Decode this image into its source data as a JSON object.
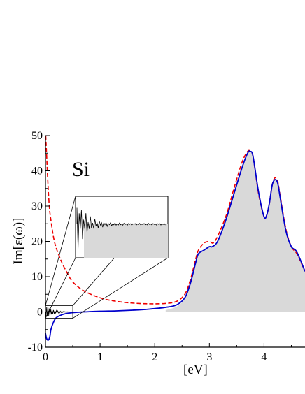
{
  "chart_data": {
    "type": "line",
    "title": "",
    "annotation": "Si",
    "xlabel": "[eV]",
    "ylabel": "Im[ε(ω)]",
    "xlim": [
      0,
      4.75
    ],
    "ylim": [
      -10,
      50
    ],
    "xticks": [
      0,
      1,
      2,
      3,
      4
    ],
    "yticks": [
      -10,
      0,
      10,
      20,
      30,
      40,
      50
    ],
    "legend": "none",
    "grid": false,
    "colors": {
      "blue_line": "#0000cc",
      "red_dashed": "#ee0000",
      "shaded_area": "#d9d9d9",
      "noisy_line": "#000000"
    },
    "series": [
      {
        "style": "solid-blue",
        "x": [
          0.0,
          0.02,
          0.05,
          0.08,
          0.1,
          0.15,
          0.2,
          0.3,
          0.4,
          0.5,
          0.7,
          1.0,
          1.3,
          1.6,
          1.9,
          2.2,
          2.4,
          2.55,
          2.65,
          2.75,
          2.8,
          2.9,
          3.0,
          3.05,
          3.15,
          3.3,
          3.45,
          3.6,
          3.7,
          3.75,
          3.8,
          3.9,
          4.0,
          4.05,
          4.1,
          4.15,
          4.2,
          4.25,
          4.3,
          4.4,
          4.5,
          4.6,
          4.75
        ],
        "y": [
          -6.0,
          -7.5,
          -8.0,
          -7.0,
          -5.0,
          -2.8,
          -1.6,
          -0.8,
          -0.4,
          -0.2,
          0.0,
          0.2,
          0.3,
          0.5,
          0.8,
          1.3,
          2.0,
          4.0,
          8.0,
          14.0,
          16.5,
          17.5,
          18.5,
          18.5,
          20.0,
          26.0,
          33.5,
          41.0,
          45.0,
          45.5,
          44.0,
          34.0,
          27.0,
          27.5,
          31.0,
          36.0,
          37.5,
          36.5,
          32.0,
          23.0,
          18.5,
          17.0,
          11.5
        ]
      },
      {
        "style": "dashed-red",
        "x": [
          0.005,
          0.02,
          0.04,
          0.07,
          0.1,
          0.15,
          0.2,
          0.3,
          0.4,
          0.5,
          0.7,
          1.0,
          1.3,
          1.6,
          1.9,
          2.2,
          2.4,
          2.55,
          2.65,
          2.75,
          2.8,
          2.9,
          3.0,
          3.1,
          3.3,
          3.45,
          3.6,
          3.7,
          3.75,
          3.8,
          3.9,
          4.0,
          4.05,
          4.1,
          4.15,
          4.2,
          4.25,
          4.3,
          4.4,
          4.5,
          4.6,
          4.75
        ],
        "y": [
          50.0,
          45.0,
          38.0,
          30.0,
          26.0,
          21.0,
          18.0,
          14.0,
          11.0,
          8.5,
          6.0,
          4.0,
          3.0,
          2.5,
          2.3,
          2.4,
          3.0,
          5.0,
          9.0,
          15.0,
          17.5,
          19.5,
          20.0,
          20.0,
          27.0,
          35.0,
          42.5,
          45.5,
          45.5,
          44.0,
          33.5,
          27.0,
          27.5,
          31.0,
          36.0,
          38.0,
          37.0,
          32.5,
          23.5,
          18.5,
          16.5,
          11.5
        ]
      },
      {
        "style": "shaded-area",
        "x": [
          2.2,
          2.4,
          2.55,
          2.65,
          2.75,
          2.8,
          2.9,
          3.0,
          3.05,
          3.15,
          3.3,
          3.45,
          3.6,
          3.7,
          3.75,
          3.8,
          3.9,
          4.0,
          4.05,
          4.1,
          4.15,
          4.2,
          4.25,
          4.3,
          4.4,
          4.5,
          4.6,
          4.75
        ],
        "y": [
          0.5,
          1.5,
          3.8,
          8.0,
          14.0,
          16.5,
          17.5,
          18.5,
          18.5,
          20.0,
          26.0,
          33.5,
          41.0,
          45.0,
          45.5,
          44.0,
          34.0,
          27.0,
          27.5,
          31.0,
          36.0,
          37.5,
          36.5,
          32.0,
          23.0,
          18.5,
          17.0,
          11.5
        ]
      }
    ]
  }
}
